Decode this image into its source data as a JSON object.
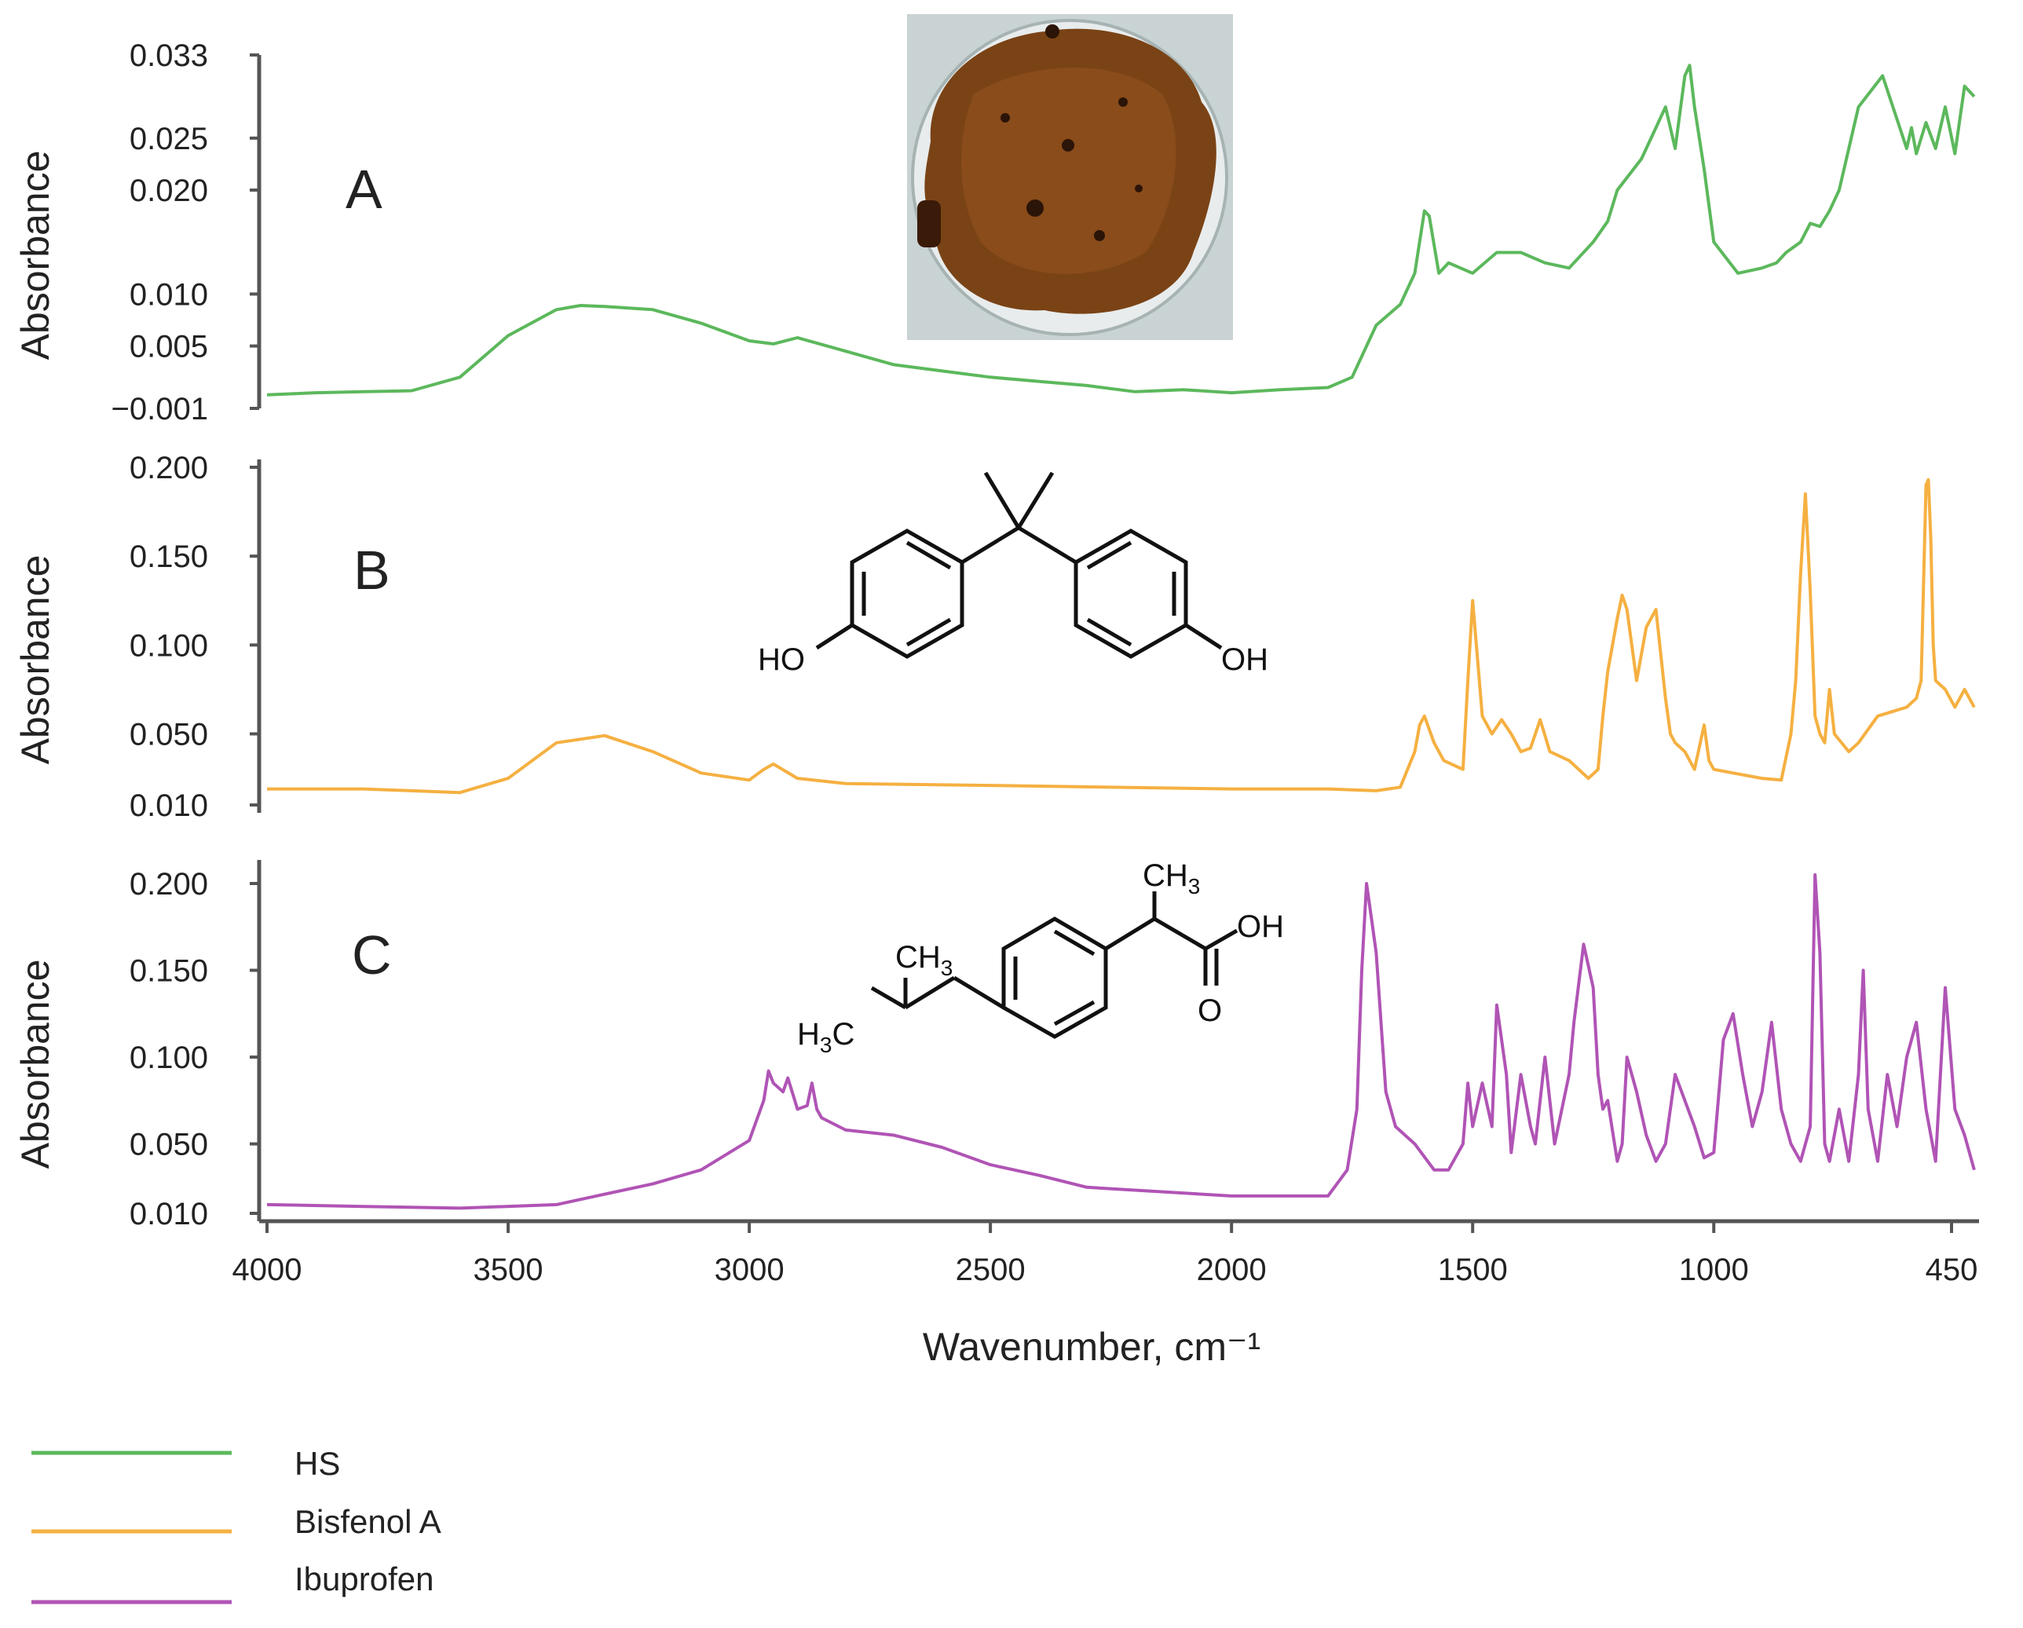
{
  "chart_data": [
    {
      "type": "line",
      "panel": "A",
      "ylabel": "Absorbance",
      "yticks": [
        "0.033",
        "0.025",
        "0.020",
        "0.010",
        "0.005",
        "−0.001"
      ],
      "ytick_values": [
        0.033,
        0.025,
        0.02,
        0.01,
        0.005,
        -0.001
      ],
      "ylim": [
        -0.001,
        0.033
      ],
      "series": [
        {
          "name": "HS",
          "color": "#5cb85c",
          "x": [
            4000,
            3900,
            3800,
            3700,
            3600,
            3500,
            3400,
            3350,
            3300,
            3200,
            3100,
            3000,
            2950,
            2900,
            2800,
            2700,
            2600,
            2500,
            2400,
            2300,
            2200,
            2100,
            2000,
            1900,
            1800,
            1750,
            1720,
            1700,
            1650,
            1620,
            1600,
            1590,
            1570,
            1550,
            1500,
            1450,
            1400,
            1350,
            1300,
            1250,
            1220,
            1200,
            1150,
            1120,
            1100,
            1080,
            1060,
            1050,
            1040,
            1020,
            1000,
            950,
            900,
            870,
            850,
            820,
            800,
            780,
            760,
            740,
            700,
            650,
            600,
            590,
            580,
            560,
            540,
            520,
            500,
            480,
            460
          ],
          "y": [
            0.0003,
            0.0005,
            0.0006,
            0.0007,
            0.002,
            0.006,
            0.0085,
            0.0089,
            0.0088,
            0.0085,
            0.0072,
            0.0055,
            0.0052,
            0.0058,
            0.0045,
            0.0032,
            0.0026,
            0.002,
            0.0016,
            0.0012,
            0.0006,
            0.0008,
            0.0005,
            0.0008,
            0.001,
            0.002,
            0.005,
            0.007,
            0.009,
            0.012,
            0.018,
            0.0175,
            0.012,
            0.013,
            0.012,
            0.014,
            0.014,
            0.013,
            0.0125,
            0.015,
            0.017,
            0.02,
            0.023,
            0.026,
            0.028,
            0.024,
            0.031,
            0.032,
            0.028,
            0.022,
            0.015,
            0.012,
            0.0125,
            0.013,
            0.014,
            0.015,
            0.0168,
            0.0165,
            0.018,
            0.02,
            0.028,
            0.031,
            0.024,
            0.026,
            0.0235,
            0.0265,
            0.024,
            0.028,
            0.0235,
            0.03,
            0.029
          ]
        }
      ]
    },
    {
      "type": "line",
      "panel": "B",
      "ylabel": "Absorbance",
      "yticks": [
        "0.200",
        "0.150",
        "0.100",
        "0.050",
        "0.010"
      ],
      "ytick_values": [
        0.2,
        0.15,
        0.1,
        0.05,
        0.01
      ],
      "ylim": [
        0.01,
        0.2
      ],
      "series": [
        {
          "name": "Bisfenol A",
          "color": "#f5b041",
          "x": [
            4000,
            3800,
            3600,
            3500,
            3400,
            3300,
            3200,
            3100,
            3000,
            2970,
            2950,
            2900,
            2800,
            2500,
            2000,
            1800,
            1700,
            1650,
            1620,
            1610,
            1600,
            1580,
            1560,
            1520,
            1510,
            1500,
            1480,
            1460,
            1440,
            1420,
            1400,
            1380,
            1360,
            1340,
            1300,
            1260,
            1240,
            1230,
            1220,
            1200,
            1190,
            1180,
            1160,
            1140,
            1120,
            1100,
            1090,
            1080,
            1060,
            1040,
            1020,
            1010,
            1000,
            960,
            900,
            860,
            840,
            830,
            820,
            810,
            800,
            790,
            780,
            770,
            760,
            750,
            720,
            700,
            660,
            600,
            580,
            570,
            560,
            555,
            550,
            545,
            540,
            520,
            500,
            480,
            460
          ],
          "y": [
            0.019,
            0.019,
            0.017,
            0.025,
            0.045,
            0.049,
            0.04,
            0.028,
            0.024,
            0.03,
            0.033,
            0.025,
            0.022,
            0.021,
            0.019,
            0.019,
            0.018,
            0.02,
            0.04,
            0.055,
            0.06,
            0.045,
            0.035,
            0.03,
            0.08,
            0.125,
            0.06,
            0.05,
            0.058,
            0.05,
            0.04,
            0.042,
            0.058,
            0.04,
            0.035,
            0.025,
            0.03,
            0.06,
            0.085,
            0.115,
            0.128,
            0.12,
            0.08,
            0.11,
            0.12,
            0.07,
            0.05,
            0.045,
            0.04,
            0.03,
            0.055,
            0.035,
            0.03,
            0.028,
            0.025,
            0.024,
            0.05,
            0.08,
            0.14,
            0.185,
            0.13,
            0.06,
            0.05,
            0.045,
            0.075,
            0.05,
            0.04,
            0.045,
            0.06,
            0.065,
            0.07,
            0.08,
            0.19,
            0.193,
            0.16,
            0.1,
            0.08,
            0.075,
            0.065,
            0.075,
            0.065
          ]
        }
      ]
    },
    {
      "type": "line",
      "panel": "C",
      "ylabel": "Absorbance",
      "yticks": [
        "0.200",
        "0.150",
        "0.100",
        "0.050",
        "0.010"
      ],
      "ytick_values": [
        0.2,
        0.15,
        0.1,
        0.05,
        0.01
      ],
      "ylim": [
        0.01,
        0.2
      ],
      "series": [
        {
          "name": "Ibuprofen",
          "color": "#b054b5",
          "x": [
            4000,
            3800,
            3600,
            3400,
            3200,
            3100,
            3000,
            2970,
            2960,
            2950,
            2930,
            2920,
            2900,
            2880,
            2870,
            2860,
            2850,
            2800,
            2700,
            2600,
            2500,
            2400,
            2300,
            2000,
            1800,
            1760,
            1740,
            1730,
            1720,
            1710,
            1700,
            1690,
            1680,
            1660,
            1620,
            1580,
            1550,
            1520,
            1510,
            1500,
            1480,
            1460,
            1450,
            1430,
            1420,
            1400,
            1380,
            1370,
            1350,
            1330,
            1300,
            1290,
            1270,
            1250,
            1240,
            1230,
            1220,
            1200,
            1190,
            1180,
            1160,
            1140,
            1120,
            1100,
            1080,
            1060,
            1040,
            1020,
            1000,
            980,
            960,
            940,
            920,
            900,
            880,
            860,
            840,
            820,
            800,
            790,
            780,
            770,
            760,
            740,
            720,
            700,
            690,
            680,
            660,
            640,
            620,
            600,
            580,
            560,
            540,
            520,
            500,
            480,
            460
          ],
          "y": [
            0.015,
            0.014,
            0.013,
            0.015,
            0.027,
            0.035,
            0.052,
            0.075,
            0.092,
            0.085,
            0.08,
            0.088,
            0.07,
            0.072,
            0.085,
            0.07,
            0.065,
            0.058,
            0.055,
            0.048,
            0.038,
            0.032,
            0.025,
            0.02,
            0.02,
            0.035,
            0.07,
            0.15,
            0.2,
            0.18,
            0.16,
            0.12,
            0.08,
            0.06,
            0.05,
            0.035,
            0.035,
            0.05,
            0.085,
            0.06,
            0.085,
            0.06,
            0.13,
            0.09,
            0.045,
            0.09,
            0.06,
            0.05,
            0.1,
            0.05,
            0.09,
            0.12,
            0.165,
            0.14,
            0.09,
            0.07,
            0.075,
            0.04,
            0.05,
            0.1,
            0.08,
            0.055,
            0.04,
            0.05,
            0.09,
            0.075,
            0.06,
            0.042,
            0.045,
            0.11,
            0.125,
            0.09,
            0.06,
            0.08,
            0.12,
            0.07,
            0.05,
            0.04,
            0.06,
            0.205,
            0.16,
            0.05,
            0.04,
            0.07,
            0.04,
            0.09,
            0.15,
            0.07,
            0.04,
            0.09,
            0.06,
            0.1,
            0.12,
            0.07,
            0.04,
            0.14,
            0.07,
            0.055,
            0.035
          ]
        }
      ]
    }
  ],
  "xaxis": {
    "label": "Wavenumber, cm⁻¹",
    "ticks": [
      "4000",
      "3500",
      "3000",
      "2500",
      "2000",
      "1500",
      "1000",
      "450"
    ],
    "tick_values": [
      4000,
      3500,
      3000,
      2500,
      2000,
      1500,
      1000,
      450
    ],
    "range": [
      4000,
      450
    ]
  },
  "legend": {
    "placement": "bottom-left",
    "entries": [
      {
        "label": "HS",
        "color": "#5cb85c"
      },
      {
        "label": "Bisfenol A",
        "color": "#f5b041"
      },
      {
        "label": "Ibuprofen",
        "color": "#b054b5"
      }
    ]
  },
  "structures": {
    "bpa": {
      "left_label": "HO",
      "right_label": "OH"
    },
    "ibuprofen": {
      "ch3_top": "CH",
      "ch3_top_sub": "3",
      "ch3_mid": "CH",
      "ch3_mid_sub": "3",
      "h3c_h": "H",
      "h3c_sub": "3",
      "h3c_c": "C",
      "oh": "OH",
      "o": "O"
    }
  }
}
